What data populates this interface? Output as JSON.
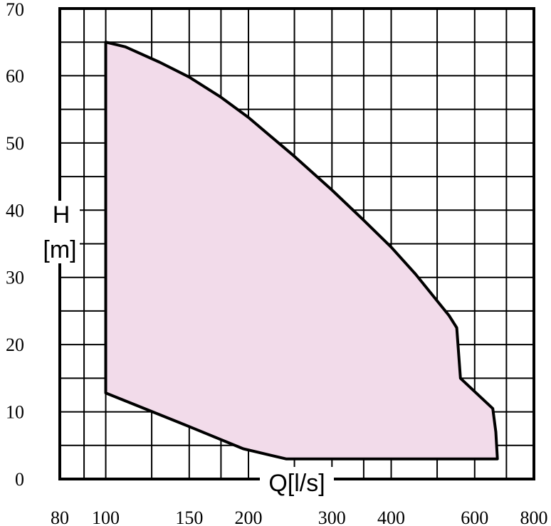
{
  "chart_data": {
    "type": "area",
    "title": "",
    "xlabel": "Q[l/s]",
    "ylabel": "H\n[m]",
    "xscale": "log",
    "xlim": [
      80,
      800
    ],
    "ylim": [
      0,
      70
    ],
    "grid": true,
    "x_ticks": [
      80,
      100,
      150,
      200,
      300,
      400,
      600,
      800
    ],
    "x_gridlines": [
      80,
      90,
      100,
      125,
      150,
      175,
      200,
      250,
      300,
      350,
      400,
      500,
      600,
      700,
      800
    ],
    "y_ticks": [
      0,
      10,
      20,
      30,
      40,
      50,
      60,
      70
    ],
    "y_gridlines": [
      0,
      5,
      10,
      15,
      20,
      25,
      30,
      35,
      40,
      45,
      50,
      55,
      60,
      65,
      70
    ],
    "fill_color": "#f2dbea",
    "line_color": "#000000",
    "series": [
      {
        "values": [
          {
            "x": 100,
            "y": 65
          },
          {
            "x": 110,
            "y": 64.3
          },
          {
            "x": 130,
            "y": 62.0
          },
          {
            "x": 150,
            "y": 59.8
          },
          {
            "x": 175,
            "y": 56.8
          },
          {
            "x": 200,
            "y": 53.8
          },
          {
            "x": 250,
            "y": 48.0
          },
          {
            "x": 300,
            "y": 43.0
          },
          {
            "x": 350,
            "y": 38.5
          },
          {
            "x": 400,
            "y": 34.5
          },
          {
            "x": 450,
            "y": 30.5
          },
          {
            "x": 500,
            "y": 26.5
          },
          {
            "x": 530,
            "y": 24.3
          },
          {
            "x": 550,
            "y": 22.5
          },
          {
            "x": 560,
            "y": 15.0
          },
          {
            "x": 655,
            "y": 10.5
          },
          {
            "x": 665,
            "y": 7.0
          },
          {
            "x": 670,
            "y": 3.0
          },
          {
            "x": 240,
            "y": 3.0
          },
          {
            "x": 195,
            "y": 4.5
          },
          {
            "x": 150,
            "y": 7.8
          },
          {
            "x": 100,
            "y": 12.8
          }
        ]
      }
    ]
  }
}
